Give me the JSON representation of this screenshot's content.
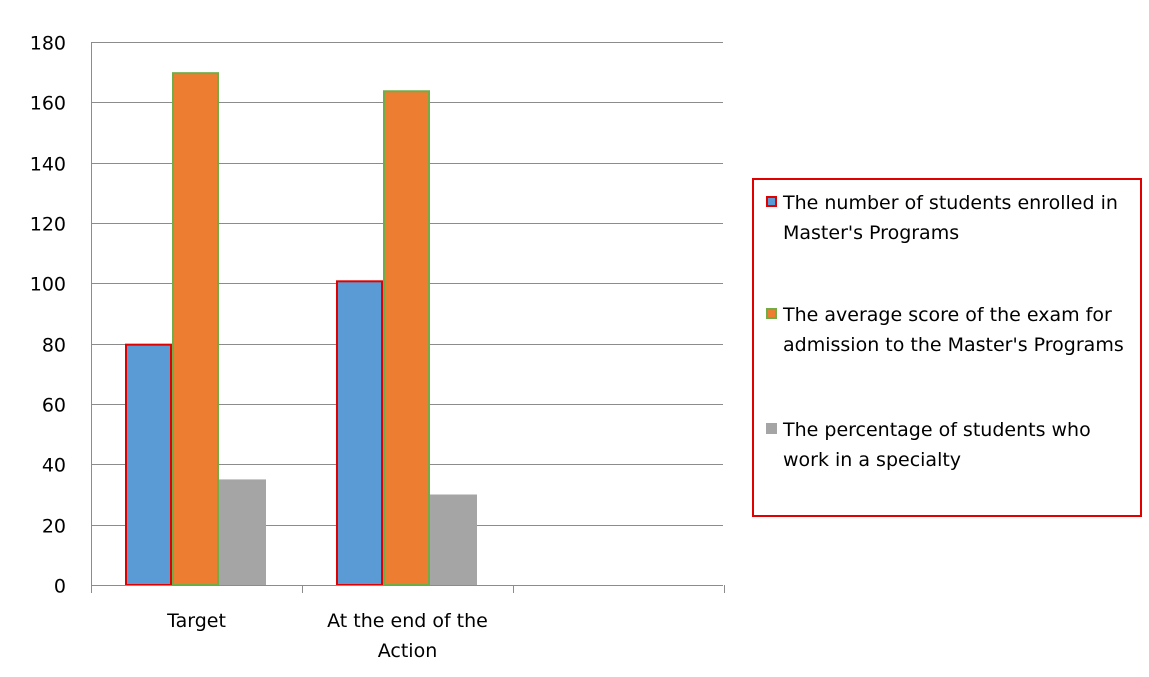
{
  "chart_data": {
    "type": "bar",
    "categories": [
      "Target",
      "At the end of the Action"
    ],
    "series": [
      {
        "name": "The number of students enrolled in Master's Programs",
        "values": [
          80,
          101
        ],
        "color": "#5b9bd5",
        "border": "#e00000"
      },
      {
        "name": "The average score of the exam for admission to the Master's Programs",
        "values": [
          170,
          164
        ],
        "color": "#ed7d31",
        "border": "#70ad47"
      },
      {
        "name": "The percentage of students who work in a specialty",
        "values": [
          35,
          30
        ],
        "color": "#a5a5a5",
        "border": "#a5a5a5"
      }
    ],
    "ylim": [
      0,
      180
    ],
    "yticks": [
      0,
      20,
      40,
      60,
      80,
      100,
      120,
      140,
      160,
      180
    ],
    "grid": true,
    "legend_position": "right",
    "legend_border_color": "#e00000"
  }
}
